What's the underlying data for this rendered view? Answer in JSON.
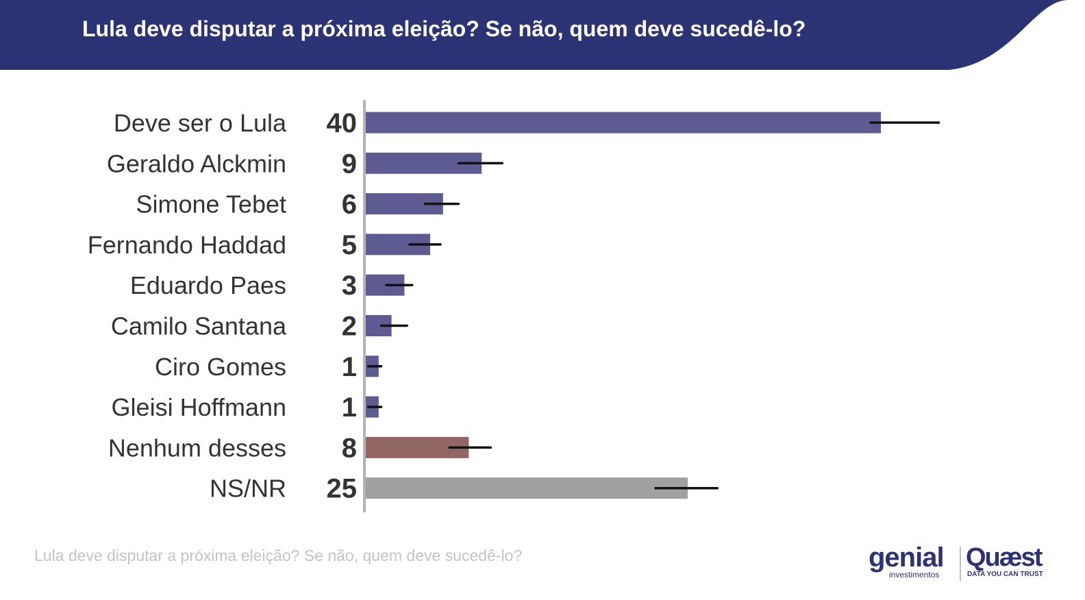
{
  "header": {
    "title": "Lula deve disputar a próxima eleição? Se não, quem deve sucedê-lo?",
    "background_color": "#2c3374"
  },
  "chart_data": {
    "type": "bar",
    "orientation": "horizontal",
    "categories": [
      "Deve ser o Lula",
      "Geraldo Alckmin",
      "Simone Tebet",
      "Fernando Haddad",
      "Eduardo Paes",
      "Camilo Santana",
      "Ciro Gomes",
      "Gleisi Hoffmann",
      "Nenhum desses",
      "NS/NR"
    ],
    "values": [
      40,
      9,
      6,
      5,
      3,
      2,
      1,
      1,
      8,
      25
    ],
    "value_labels": [
      "40",
      "9",
      "6",
      "5",
      "3",
      "2",
      "1",
      "1",
      "8",
      "25"
    ],
    "error_bars": [
      [
        39.2,
        44.5
      ],
      [
        7.2,
        10.6
      ],
      [
        4.6,
        7.2
      ],
      [
        3.4,
        5.8
      ],
      [
        1.6,
        3.6
      ],
      [
        1.2,
        3.2
      ],
      [
        0.2,
        1.2
      ],
      [
        0.2,
        1.2
      ],
      [
        6.5,
        9.7
      ],
      [
        22.5,
        27.3
      ]
    ],
    "bar_colors": [
      "#5d5b92",
      "#5d5b92",
      "#5d5b92",
      "#5d5b92",
      "#5d5b92",
      "#5d5b92",
      "#5d5b92",
      "#5d5b92",
      "#936864",
      "#a0a0a0"
    ],
    "xlim": [
      0,
      56
    ],
    "grid": false,
    "legend": "none"
  },
  "footer": {
    "caption": "Lula deve disputar a próxima eleição? Se não, quem deve sucedê-lo?"
  },
  "logos": {
    "genial": {
      "name": "genial",
      "tagline": "investimentos"
    },
    "quaest": {
      "name": "Quæst",
      "tagline": "DATA YOU CAN TRUST"
    }
  }
}
